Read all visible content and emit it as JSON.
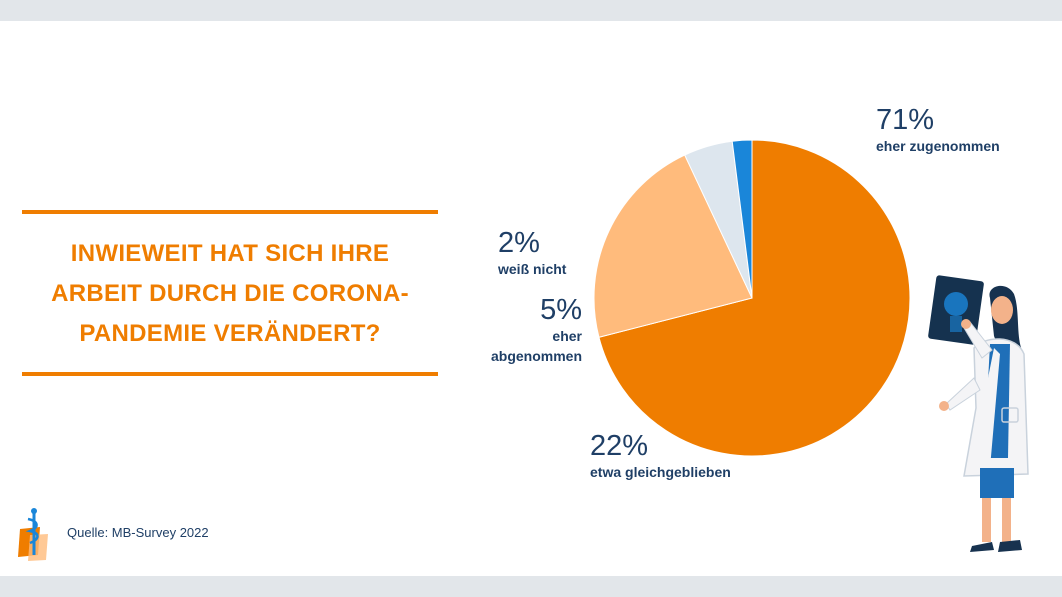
{
  "title": "INWIEWEIT HAT SICH IHRE\nARBEIT DURCH DIE CORONA-\nPANDEMIE VERÄNDERT?",
  "source": "Quelle: MB-Survey 2022",
  "colors": {
    "accent": "#ef7d00",
    "text": "#1f3f66",
    "slice_increased": "#ef7d00",
    "slice_same": "#ffbb7c",
    "slice_decreased": "#dde6ee",
    "slice_unknown": "#1a86d9"
  },
  "icons": [
    "marburger-bund-logo-icon",
    "doctor-with-xray-illustration"
  ],
  "chart_data": {
    "type": "pie",
    "title": "INWIEWEIT HAT SICH IHRE ARBEIT DURCH DIE CORONA-PANDEMIE VERÄNDERT?",
    "slices": [
      {
        "label": "eher zugenommen",
        "value": 71,
        "display": "71%",
        "color": "#ef7d00"
      },
      {
        "label": "etwa gleichgeblieben",
        "value": 22,
        "display": "22%",
        "color": "#ffbb7c"
      },
      {
        "label": "eher\nabgenommen",
        "value": 5,
        "display": "5%",
        "color": "#dde6ee"
      },
      {
        "label": "weiß nicht",
        "value": 2,
        "display": "2%",
        "color": "#1a86d9"
      }
    ],
    "start": "12 o'clock",
    "direction": "clockwise",
    "legend": "none"
  }
}
